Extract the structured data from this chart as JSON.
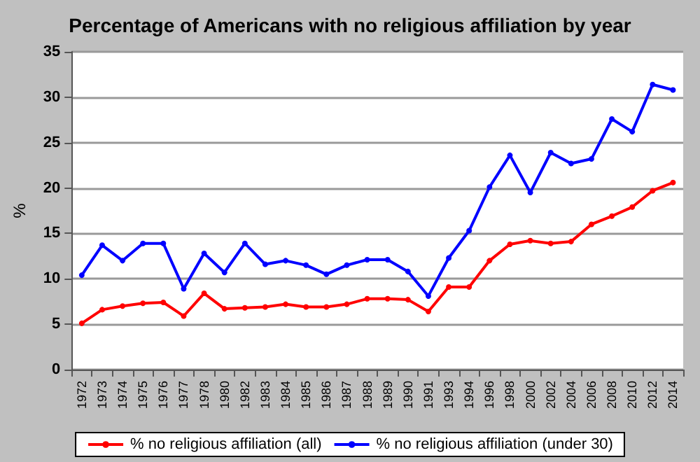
{
  "chart_data": {
    "type": "line",
    "title": "Percentage of Americans with no religious affiliation by year",
    "ylabel": "%",
    "categories": [
      "1972",
      "1973",
      "1974",
      "1975",
      "1976",
      "1977",
      "1978",
      "1980",
      "1982",
      "1983",
      "1984",
      "1985",
      "1986",
      "1987",
      "1988",
      "1989",
      "1990",
      "1991",
      "1993",
      "1994",
      "1996",
      "1998",
      "2000",
      "2002",
      "2004",
      "2006",
      "2008",
      "2010",
      "2012",
      "2014"
    ],
    "series": [
      {
        "name": "% no religious affiliation (all)",
        "color": "#ff0000",
        "values": [
          5.1,
          6.6,
          7.0,
          7.3,
          7.4,
          5.9,
          8.4,
          6.7,
          6.8,
          6.9,
          7.2,
          6.9,
          6.9,
          7.2,
          7.8,
          7.8,
          7.7,
          6.4,
          9.1,
          9.1,
          12.0,
          13.8,
          14.2,
          13.9,
          14.1,
          16.0,
          16.9,
          17.9,
          19.7,
          20.6
        ]
      },
      {
        "name": "% no religious affiliation (under 30)",
        "color": "#0000ff",
        "values": [
          10.4,
          13.7,
          12.0,
          13.9,
          13.9,
          8.9,
          12.8,
          10.7,
          13.9,
          11.6,
          12.0,
          11.5,
          10.5,
          11.5,
          12.1,
          12.1,
          10.8,
          8.1,
          12.3,
          15.3,
          20.1,
          23.6,
          19.5,
          23.9,
          22.7,
          23.2,
          27.6,
          26.2,
          31.4,
          30.8
        ]
      }
    ],
    "ylim": [
      0,
      35
    ],
    "yticks": [
      0,
      5,
      10,
      15,
      20,
      25,
      30,
      35
    ],
    "grid": "y",
    "legend": "bottom",
    "marker": "circle",
    "line_style": "solid"
  }
}
